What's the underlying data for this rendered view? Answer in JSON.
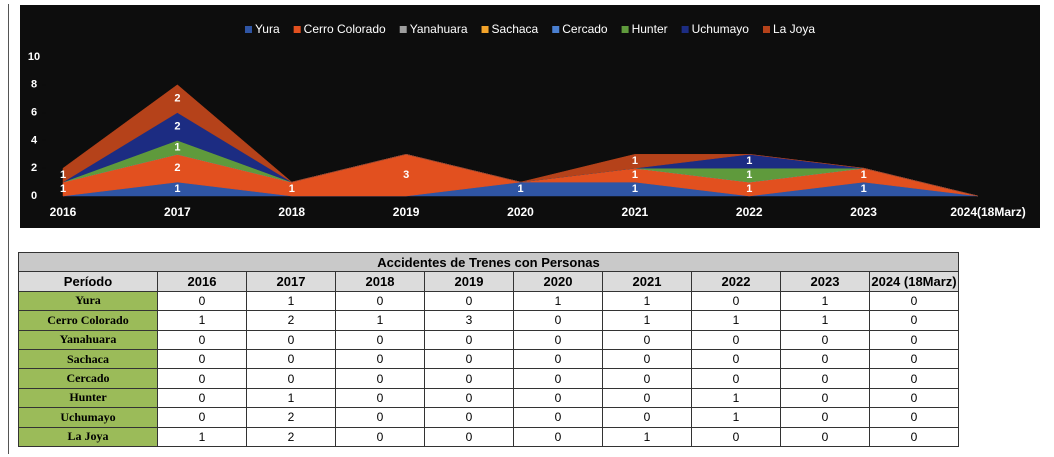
{
  "chart_data": {
    "type": "stacked_area",
    "categories": [
      "2016",
      "2017",
      "2018",
      "2019",
      "2020",
      "2021",
      "2022",
      "2023",
      "2024(18Marz)"
    ],
    "series": [
      {
        "name": "Yura",
        "color": "#2f55a4",
        "values": [
          0,
          1,
          0,
          0,
          1,
          1,
          0,
          1,
          0
        ]
      },
      {
        "name": "Cerro Colorado",
        "color": "#e2501f",
        "values": [
          1,
          2,
          1,
          3,
          0,
          1,
          1,
          1,
          0
        ]
      },
      {
        "name": "Yanahuara",
        "color": "#9e9e9e",
        "values": [
          0,
          0,
          0,
          0,
          0,
          0,
          0,
          0,
          0
        ]
      },
      {
        "name": "Sachaca",
        "color": "#f2a32a",
        "values": [
          0,
          0,
          0,
          0,
          0,
          0,
          0,
          0,
          0
        ]
      },
      {
        "name": "Cercado",
        "color": "#4a7fd0",
        "values": [
          0,
          0,
          0,
          0,
          0,
          0,
          0,
          0,
          0
        ]
      },
      {
        "name": "Hunter",
        "color": "#5f9a3c",
        "values": [
          0,
          1,
          0,
          0,
          0,
          0,
          1,
          0,
          0
        ]
      },
      {
        "name": "Uchumayo",
        "color": "#1c2c82",
        "values": [
          0,
          2,
          0,
          0,
          0,
          0,
          1,
          0,
          0
        ]
      },
      {
        "name": "La Joya",
        "color": "#b5421a",
        "values": [
          1,
          2,
          0,
          0,
          0,
          1,
          0,
          0,
          0
        ]
      }
    ],
    "ylim": [
      0,
      10
    ],
    "yticks": [
      0,
      2,
      4,
      6,
      8,
      10
    ],
    "legend": "top"
  },
  "table": {
    "title": "Accidentes de Trenes con Personas",
    "row_header": "Período",
    "columns": [
      "2016",
      "2017",
      "2018",
      "2019",
      "2020",
      "2021",
      "2022",
      "2023",
      "2024 (18Marz)"
    ]
  }
}
